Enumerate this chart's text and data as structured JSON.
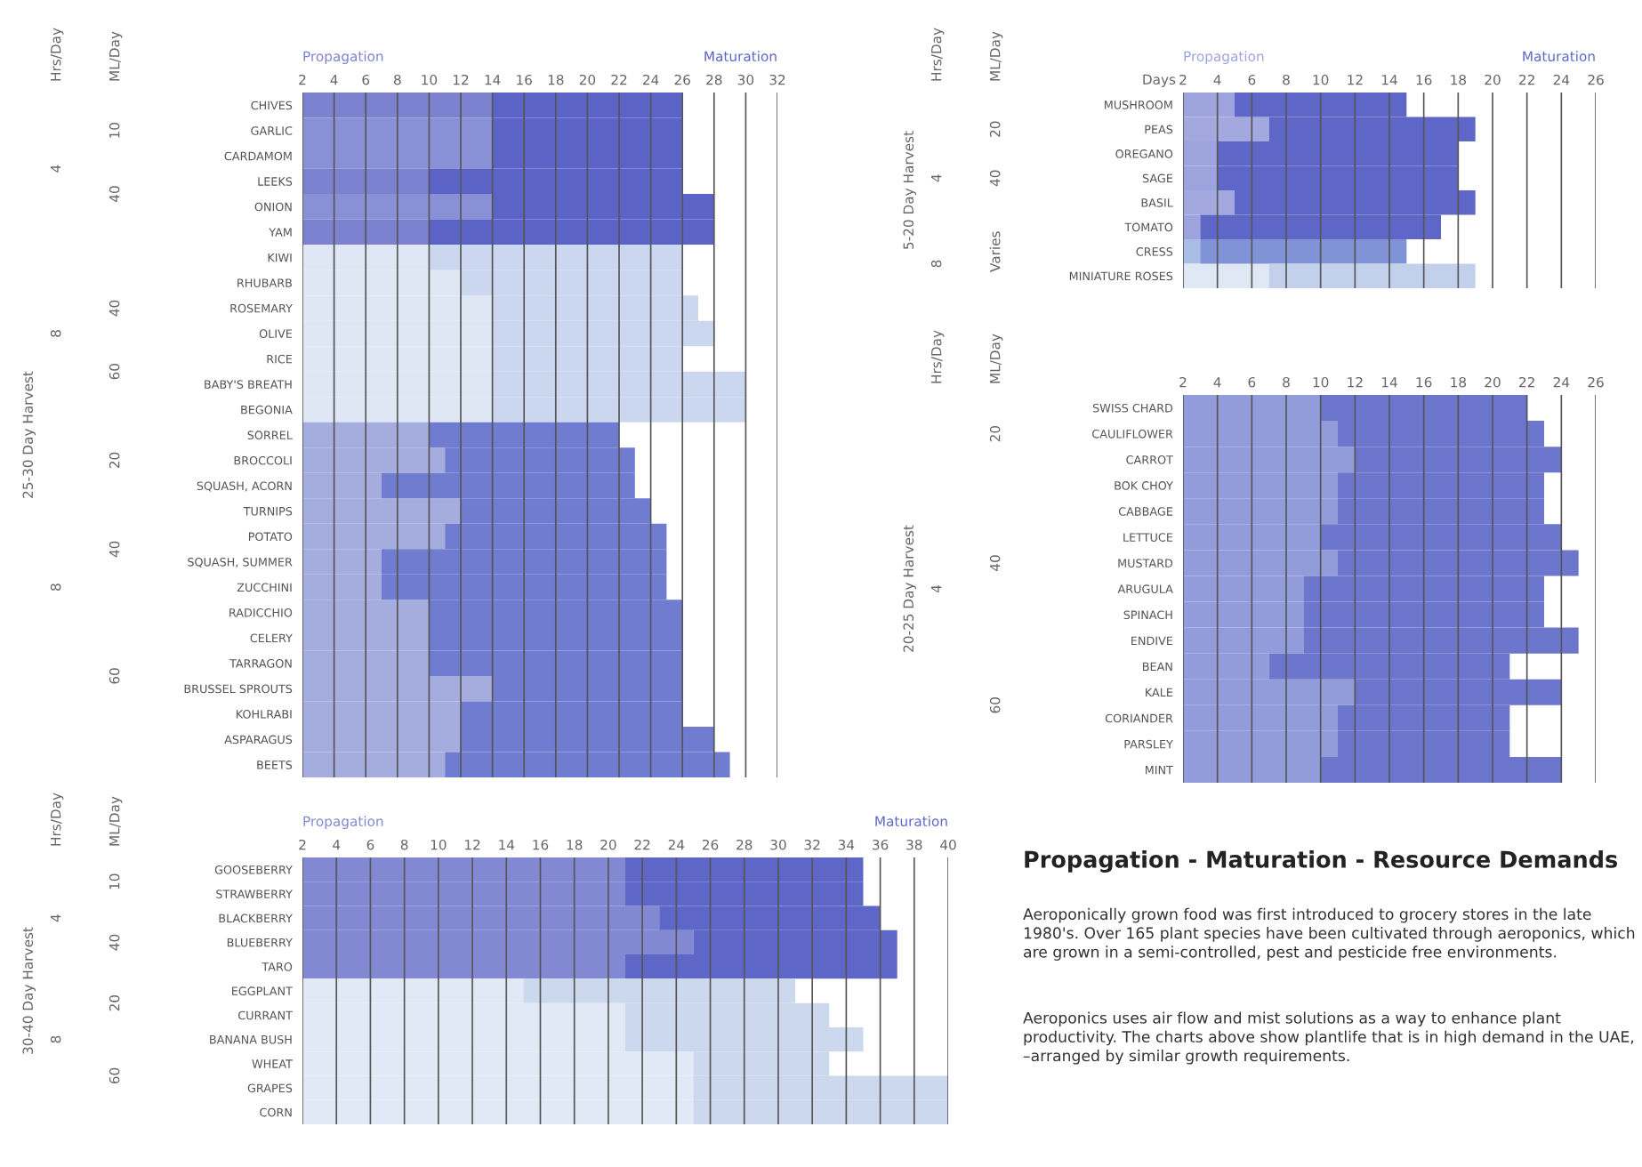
{
  "chart_data": [
    {
      "type": "bar",
      "orientation": "horizontal",
      "stacked": true,
      "grid": "x",
      "ylabel": "25-30 Day Harvest",
      "categories": [
        "CHIVES",
        "GARLIC",
        "CARDAMOM",
        "LEEKS",
        "ONION",
        "YAM",
        "KIWI",
        "RHUBARB",
        "ROSEMARY",
        "OLIVE",
        "RICE",
        "BABY'S BREATH",
        "BEGONIA",
        "SORREL",
        "BROCCOLI",
        "SQUASH, ACORN",
        "TURNIPS",
        "POTATO",
        "SQUASH, SUMMER",
        "ZUCCHINI",
        "RADICCHIO",
        "CELERY",
        "TARRAGON",
        "BRUSSEL SPROUTS",
        "KOHLRABI",
        "ASPARAGUS",
        "BEETS"
      ],
      "series": [
        {
          "name": "Propagation",
          "values": [
            14,
            14,
            14,
            10,
            14,
            10,
            10,
            12,
            14,
            14,
            14,
            14,
            14,
            10,
            11,
            7,
            12,
            11,
            7,
            7,
            10,
            10,
            10,
            14,
            12,
            12,
            11
          ],
          "colors": [
            "#7c82d0",
            "#8a90d6",
            "#8a90d6",
            "#7c82d0",
            "#8a90d6",
            "#7c82d0",
            "#dfe7f5",
            "#dfe7f5",
            "#dfe7f5",
            "#dfe7f5",
            "#dfe7f5",
            "#dfe7f5",
            "#dfe7f5",
            "#a5addf",
            "#a5addf",
            "#a5addf",
            "#a5addf",
            "#a5addf",
            "#a5addf",
            "#a5addf",
            "#a5addf",
            "#a5addf",
            "#a5addf",
            "#a5addf",
            "#a5addf",
            "#a5addf",
            "#a5addf"
          ]
        },
        {
          "name": "Maturation",
          "values": [
            12,
            12,
            12,
            16,
            14,
            18,
            16,
            14,
            13,
            14,
            12,
            16,
            16,
            12,
            12,
            16,
            12,
            14,
            18,
            18,
            16,
            16,
            16,
            12,
            14,
            16,
            18
          ],
          "colors": [
            "#5b63c6",
            "#5b63c6",
            "#5b63c6",
            "#5b63c6",
            "#5b63c6",
            "#5b63c6",
            "#cbd7ee",
            "#cbd7ee",
            "#cbd7ee",
            "#cbd7ee",
            "#cbd7ee",
            "#cbd7ee",
            "#cbd7ee",
            "#6f7ccf",
            "#6f7ccf",
            "#6f7ccf",
            "#6f7ccf",
            "#6f7ccf",
            "#6f7ccf",
            "#6f7ccf",
            "#6f7ccf",
            "#6f7ccf",
            "#6f7ccf",
            "#6f7ccf",
            "#6f7ccf",
            "#6f7ccf",
            "#6f7ccf"
          ]
        }
      ],
      "xlim": [
        2,
        32
      ],
      "xticks": [
        2,
        4,
        6,
        8,
        10,
        12,
        14,
        16,
        18,
        20,
        22,
        24,
        26,
        28,
        30,
        32
      ],
      "annotations": [
        "Hrs/Day",
        "4",
        "8",
        "8",
        "ML/Day",
        "10",
        "40",
        "40",
        "60",
        "20",
        "40",
        "60"
      ]
    },
    {
      "type": "bar",
      "orientation": "horizontal",
      "stacked": true,
      "grid": "x",
      "ylabel": "5-20 Day Harvest",
      "xlabel": "Days",
      "categories": [
        "MUSHROOM",
        "PEAS",
        "OREGANO",
        "SAGE",
        "BASIL",
        "TOMATO",
        "CRESS",
        "MINIATURE ROSES"
      ],
      "series": [
        {
          "name": "Propagation",
          "values": [
            5,
            7,
            4,
            4,
            5,
            3,
            3,
            7
          ],
          "colors": [
            "#9da3dc",
            "#a3a9de",
            "#9da3dc",
            "#9da3dc",
            "#a3a9de",
            "#9da3dc",
            "#a9bde6",
            "#e0e8f5"
          ]
        },
        {
          "name": "Maturation",
          "values": [
            10,
            12,
            14,
            14,
            14,
            14,
            12,
            12
          ],
          "colors": [
            "#5e66c8",
            "#5e66c8",
            "#5e66c8",
            "#5e66c8",
            "#5e66c8",
            "#5e66c8",
            "#7f93d6",
            "#c3d0ec"
          ]
        }
      ],
      "xlim": [
        2,
        26
      ],
      "xticks": [
        2,
        4,
        6,
        8,
        10,
        12,
        14,
        16,
        18,
        20,
        22,
        24,
        26
      ],
      "annotations": [
        "Hrs/Day",
        "4",
        "8",
        "ML/Day",
        "20",
        "40",
        "Varies"
      ]
    },
    {
      "type": "bar",
      "orientation": "horizontal",
      "stacked": true,
      "grid": "x",
      "ylabel": "20-25 Day Harvest",
      "categories": [
        "SWISS CHARD",
        "CAULIFLOWER",
        "CARROT",
        "BOK CHOY",
        "CABBAGE",
        "LETTUCE",
        "MUSTARD",
        "ARUGULA",
        "SPINACH",
        "ENDIVE",
        "BEAN",
        "KALE",
        "CORIANDER",
        "PARSLEY",
        "MINT"
      ],
      "series": [
        {
          "values": [
            10,
            11,
            12,
            11,
            11,
            10,
            11,
            9,
            9,
            9,
            7,
            12,
            11,
            11,
            10
          ],
          "colors": [
            "#939cdb",
            "#939cdb",
            "#939cdb",
            "#939cdb",
            "#939cdb",
            "#939cdb",
            "#939cdb",
            "#939cdb",
            "#939cdb",
            "#939cdb",
            "#939cdb",
            "#939cdb",
            "#939cdb",
            "#939cdb",
            "#939cdb"
          ]
        },
        {
          "values": [
            12,
            12,
            12,
            12,
            12,
            14,
            14,
            14,
            14,
            16,
            14,
            12,
            10,
            10,
            14
          ],
          "colors": [
            "#6c76cc",
            "#6c76cc",
            "#6c76cc",
            "#6c76cc",
            "#6c76cc",
            "#6c76cc",
            "#6c76cc",
            "#6c76cc",
            "#6c76cc",
            "#6c76cc",
            "#6c76cc",
            "#6c76cc",
            "#6c76cc",
            "#6c76cc",
            "#6c76cc"
          ]
        }
      ],
      "xlim": [
        2,
        26
      ],
      "xticks": [
        2,
        4,
        6,
        8,
        10,
        12,
        14,
        16,
        18,
        20,
        22,
        24,
        26
      ],
      "annotations": [
        "Hrs/Day",
        "4",
        "ML/Day",
        "20",
        "40",
        "60"
      ]
    },
    {
      "type": "bar",
      "orientation": "horizontal",
      "stacked": true,
      "grid": "x",
      "ylabel": "30-40 Day Harvest",
      "categories": [
        "GOOSEBERRY",
        "STRAWBERRY",
        "BLACKBERRY",
        "BLUEBERRY",
        "TARO",
        "EGGPLANT",
        "CURRANT",
        "BANANA BUSH",
        "WHEAT",
        "GRAPES",
        "CORN"
      ],
      "series": [
        {
          "name": "Propagation",
          "values": [
            21,
            21,
            23,
            25,
            21,
            15,
            21,
            21,
            25,
            25,
            25
          ],
          "colors": [
            "#8388d3",
            "#8388d3",
            "#8388d3",
            "#8388d3",
            "#8388d3",
            "#e1e9f6",
            "#e1e9f6",
            "#e1e9f6",
            "#e1e9f6",
            "#e1e9f6",
            "#e1e9f6"
          ]
        },
        {
          "name": "Maturation",
          "values": [
            14,
            14,
            13,
            12,
            16,
            16,
            12,
            14,
            8,
            15,
            15
          ],
          "colors": [
            "#5e66c8",
            "#5e66c8",
            "#5e66c8",
            "#5e66c8",
            "#5e66c8",
            "#cbd8ee",
            "#cbd8ee",
            "#cbd8ee",
            "#cbd8ee",
            "#cbd8ee",
            "#cbd8ee"
          ]
        }
      ],
      "xlim": [
        2,
        40
      ],
      "xticks": [
        2,
        4,
        6,
        8,
        10,
        12,
        14,
        16,
        18,
        20,
        22,
        24,
        26,
        28,
        30,
        32,
        34,
        36,
        38,
        40
      ],
      "annotations": [
        "Hrs/Day",
        "4",
        "8",
        "ML/Day",
        "10",
        "40",
        "20",
        "60"
      ]
    },
    {
      "type": "other",
      "title": "Propagation - Maturation - Resource Demands",
      "annotations": [
        "Aeroponically grown food was first introduced to grocery stores in the late 1980's. Over 165 plant species have been cultivated through aeroponics, which are grown in a semi-controlled, pest and pesticide free environments.",
        "Aeroponics uses air flow and mist solutions as a way to enhance plant productivity. The charts above show plantlife that is in high demand in the UAE, –arranged by similar growth requirements."
      ]
    }
  ]
}
